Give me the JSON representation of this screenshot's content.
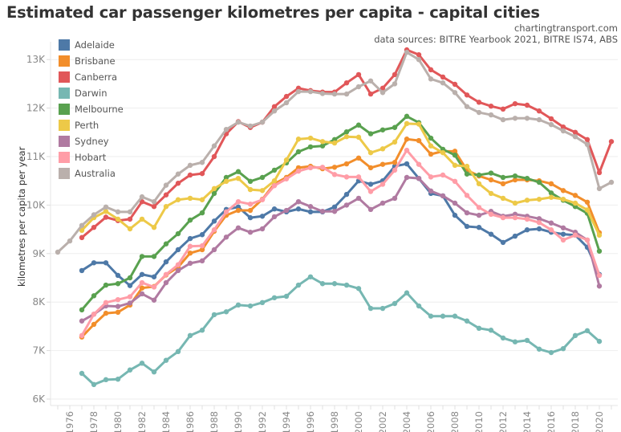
{
  "header": {
    "title": "Estimated car passenger kilometres per capita - capital cities",
    "credit_site": "chartingtransport.com",
    "credit_sources": "data sources: BITRE Yearbook 2021, BITRE IS74, ABS"
  },
  "chart_data": {
    "type": "line",
    "title": "Estimated car passenger kilometres per capita - capital cities",
    "xlabel": "",
    "ylabel": "kilometres per capita per year",
    "xlim": [
      1975,
      2021
    ],
    "ylim": [
      6000,
      13300
    ],
    "y_ticks": [
      6000,
      7000,
      8000,
      9000,
      10000,
      11000,
      12000,
      13000
    ],
    "y_tick_labels": [
      "6K",
      "7K",
      "8K",
      "9K",
      "10K",
      "11K",
      "12K",
      "13K"
    ],
    "x_ticks": [
      1976,
      1978,
      1980,
      1982,
      1984,
      1986,
      1988,
      1990,
      1992,
      1994,
      1996,
      1998,
      2000,
      2002,
      2004,
      2006,
      2008,
      2010,
      2012,
      2014,
      2016,
      2018,
      2020
    ],
    "grid": "horizontal",
    "legend_position": "top-left",
    "series": [
      {
        "name": "Adelaide",
        "color": "#4e79a7",
        "start": 1977,
        "values": [
          8650,
          8810,
          8810,
          8550,
          8340,
          8570,
          8520,
          8830,
          9080,
          9310,
          9390,
          9670,
          9910,
          9960,
          9740,
          9770,
          9920,
          9860,
          9920,
          9860,
          9860,
          9960,
          10220,
          10500,
          10430,
          10500,
          10800,
          10850,
          10550,
          10240,
          10190,
          9790,
          9560,
          9540,
          9400,
          9230,
          9360,
          9490,
          9510,
          9440,
          9400,
          9380,
          9130,
          8570
        ]
      },
      {
        "name": "Brisbane",
        "color": "#f28e2b",
        "start": 1977,
        "values": [
          7280,
          7540,
          7770,
          7790,
          7940,
          8290,
          8320,
          8560,
          8720,
          9010,
          9080,
          9460,
          9790,
          9890,
          9890,
          10120,
          10440,
          10570,
          10770,
          10800,
          10750,
          10780,
          10850,
          10970,
          10770,
          10840,
          10880,
          11360,
          11330,
          11050,
          11110,
          11110,
          10720,
          10600,
          10520,
          10440,
          10520,
          10520,
          10500,
          10440,
          10300,
          10200,
          10060,
          9430
        ]
      },
      {
        "name": "Canberra",
        "color": "#e15759",
        "start": 1977,
        "values": [
          9330,
          9540,
          9750,
          9680,
          9710,
          10070,
          9970,
          10210,
          10450,
          10620,
          10650,
          11000,
          11470,
          11720,
          11600,
          11710,
          12030,
          12240,
          12410,
          12360,
          12330,
          12330,
          12520,
          12690,
          12290,
          12410,
          12690,
          13200,
          13100,
          12790,
          12640,
          12490,
          12270,
          12120,
          12040,
          11980,
          12090,
          12060,
          11940,
          11780,
          11610,
          11500,
          11350,
          10670,
          11310
        ]
      },
      {
        "name": "Darwin",
        "color": "#76b7b2",
        "start": 1977,
        "values": [
          6530,
          6300,
          6400,
          6410,
          6600,
          6740,
          6560,
          6800,
          6980,
          7310,
          7420,
          7740,
          7800,
          7940,
          7920,
          7990,
          8090,
          8120,
          8350,
          8520,
          8380,
          8380,
          8350,
          8280,
          7870,
          7870,
          7970,
          8190,
          7920,
          7710,
          7710,
          7710,
          7610,
          7460,
          7420,
          7260,
          7180,
          7210,
          7030,
          6960,
          7040,
          7310,
          7410,
          7190
        ]
      },
      {
        "name": "Melbourne",
        "color": "#59a14f",
        "start": 1977,
        "values": [
          7840,
          8130,
          8350,
          8380,
          8500,
          8940,
          8940,
          9200,
          9410,
          9690,
          9840,
          10240,
          10570,
          10690,
          10490,
          10570,
          10720,
          10870,
          11100,
          11200,
          11220,
          11350,
          11510,
          11650,
          11470,
          11550,
          11600,
          11830,
          11700,
          11380,
          11150,
          11030,
          10640,
          10620,
          10660,
          10570,
          10600,
          10550,
          10470,
          10250,
          10100,
          9970,
          9830,
          9050
        ]
      },
      {
        "name": "Perth",
        "color": "#edc948",
        "start": 1977,
        "values": [
          9480,
          9740,
          9870,
          9710,
          9510,
          9710,
          9540,
          9970,
          10110,
          10140,
          10110,
          10340,
          10490,
          10550,
          10320,
          10300,
          10500,
          10930,
          11360,
          11380,
          11310,
          11280,
          11410,
          11400,
          11080,
          11160,
          11300,
          11680,
          11670,
          11220,
          11080,
          10820,
          10800,
          10440,
          10240,
          10140,
          10040,
          10100,
          10120,
          10160,
          10120,
          10040,
          9900,
          9380
        ]
      },
      {
        "name": "Sydney",
        "color": "#b07aa1",
        "start": 1977,
        "values": [
          7610,
          7750,
          7920,
          7910,
          7980,
          8170,
          8040,
          8400,
          8650,
          8800,
          8850,
          9080,
          9340,
          9530,
          9440,
          9510,
          9760,
          9890,
          10070,
          9970,
          9870,
          9870,
          10000,
          10140,
          9910,
          10040,
          10140,
          10570,
          10550,
          10290,
          10190,
          10040,
          9840,
          9790,
          9870,
          9770,
          9810,
          9770,
          9720,
          9630,
          9530,
          9440,
          9280,
          8330
        ]
      },
      {
        "name": "Hobart",
        "color": "#ff9da7",
        "start": 1977,
        "values": [
          7310,
          7750,
          7990,
          8050,
          8110,
          8400,
          8310,
          8570,
          8770,
          9150,
          9160,
          9490,
          9860,
          10070,
          10020,
          10110,
          10400,
          10540,
          10700,
          10770,
          10780,
          10630,
          10580,
          10580,
          10280,
          10430,
          10720,
          11130,
          10840,
          10580,
          10620,
          10490,
          10200,
          9950,
          9810,
          9740,
          9740,
          9710,
          9640,
          9490,
          9280,
          9380,
          9280,
          8550
        ]
      },
      {
        "name": "Australia",
        "color": "#bab0ac",
        "start": 1975,
        "values": [
          9030,
          9260,
          9580,
          9800,
          9960,
          9860,
          9860,
          10170,
          10070,
          10410,
          10640,
          10820,
          10880,
          11220,
          11560,
          11710,
          11630,
          11710,
          11940,
          12110,
          12340,
          12340,
          12300,
          12290,
          12290,
          12440,
          12560,
          12320,
          12500,
          13150,
          13000,
          12600,
          12520,
          12320,
          12030,
          11910,
          11860,
          11760,
          11790,
          11790,
          11760,
          11660,
          11530,
          11410,
          11250,
          10340,
          10470
        ]
      }
    ]
  }
}
